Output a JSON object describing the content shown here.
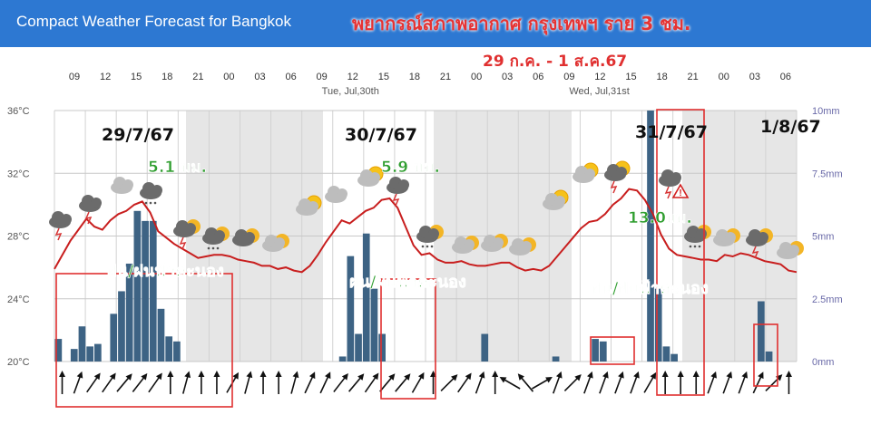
{
  "header": {
    "app_title": "Compact Weather Forecast for Bangkok",
    "thai_title": "พยากรณ์สภาพอากาศ กรุงเทพฯ ราย 3 ชม.",
    "date_range": "29 ก.ค. - 1 ส.ค.67"
  },
  "colors": {
    "banner": "#2d78d2",
    "temperature_line": "#c81e1e",
    "precip_bar": "#3d6384",
    "night_shade": "#e6e6e6",
    "annotation_red": "#e03030",
    "annotation_green": "#2f9e2f"
  },
  "chart_data": {
    "type": "line+bar",
    "x_hours": [
      "09",
      "12",
      "15",
      "18",
      "21",
      "00",
      "03",
      "06",
      "09",
      "12",
      "15",
      "18",
      "21",
      "00",
      "03",
      "06",
      "09",
      "12",
      "15",
      "18",
      "21",
      "00",
      "03",
      "06"
    ],
    "day_labels": [
      {
        "text": "Tue, Jul,30th",
        "hour_index": 8
      },
      {
        "text": "Wed, Jul,31st",
        "hour_index": 16
      }
    ],
    "y_left": {
      "ticks": [
        "20°C",
        "24°C",
        "28°C",
        "32°C",
        "36°C"
      ],
      "range": [
        20,
        36
      ],
      "unit": "°C"
    },
    "y_right": {
      "ticks": [
        "0mm",
        "2.5mm",
        "5mm",
        "7.5mm",
        "10mm"
      ],
      "range": [
        0,
        10
      ],
      "unit": "mm"
    },
    "temperature_series": [
      25.9,
      26.8,
      27.7,
      28.4,
      29.1,
      28.6,
      28.4,
      29.0,
      29.4,
      29.6,
      30.0,
      30.2,
      29.5,
      28.3,
      27.9,
      27.5,
      27.2,
      26.9,
      26.6,
      26.7,
      26.8,
      26.8,
      26.7,
      26.5,
      26.4,
      26.3,
      26.1,
      26.1,
      25.9,
      26.0,
      25.8,
      25.7,
      26.1,
      26.8,
      27.6,
      28.3,
      29.0,
      28.8,
      29.2,
      29.6,
      29.8,
      30.3,
      30.4,
      29.8,
      28.6,
      27.4,
      26.8,
      26.9,
      26.5,
      26.3,
      26.3,
      26.4,
      26.2,
      26.1,
      26.1,
      26.2,
      26.3,
      26.3,
      26.0,
      25.8,
      25.9,
      25.8,
      26.1,
      26.7,
      27.3,
      27.9,
      28.5,
      28.9,
      29.0,
      29.4,
      30.0,
      30.4,
      31.0,
      30.9,
      30.3,
      29.4,
      28.1,
      27.2,
      26.8,
      26.7,
      26.6,
      26.5,
      26.5,
      26.4,
      26.8,
      26.7,
      26.9,
      26.8,
      26.6,
      26.4,
      26.3,
      26.2,
      25.8,
      25.7
    ],
    "precipitation_mm": [
      0.9,
      0.0,
      0.5,
      1.4,
      0.6,
      0.7,
      0.0,
      1.9,
      2.8,
      3.9,
      6.0,
      5.6,
      5.6,
      2.1,
      1.0,
      0.8,
      0.0,
      0.0,
      0.0,
      0.0,
      0.0,
      0.0,
      0.0,
      0.0,
      0.0,
      0.0,
      0.0,
      0.0,
      0.0,
      0.0,
      0.0,
      0.0,
      0.0,
      0.0,
      0.0,
      0.0,
      0.2,
      4.2,
      1.1,
      5.1,
      2.9,
      1.1,
      0.0,
      0.0,
      0.0,
      0.0,
      0.0,
      0.0,
      0.0,
      0.0,
      0.0,
      0.0,
      0.0,
      0.0,
      1.1,
      0.0,
      0.0,
      0.0,
      0.0,
      0.0,
      0.0,
      0.0,
      0.0,
      0.2,
      0.0,
      0.0,
      0.0,
      0.0,
      0.9,
      0.8,
      0.0,
      0.0,
      0.0,
      0.0,
      0.0,
      12.0,
      2.9,
      0.6,
      0.3,
      0.0,
      0.0,
      0.0,
      0.0,
      0.0,
      0.0,
      0.0,
      0.0,
      0.0,
      0.0,
      2.4,
      0.4,
      0.0,
      0.0,
      0.0
    ],
    "wind_direction_deg": [
      0,
      20,
      35,
      35,
      40,
      38,
      35,
      0,
      15,
      0,
      0,
      30,
      15,
      0,
      0,
      15,
      25,
      25,
      38,
      40,
      35,
      40,
      40,
      30,
      0,
      45,
      35,
      20,
      0,
      300,
      320,
      60,
      20,
      45,
      20,
      20,
      20,
      20,
      30,
      0,
      0,
      0,
      20,
      20,
      20,
      25,
      45,
      0
    ],
    "annotations": {
      "dates": [
        "29/7/67",
        "30/7/67",
        "31/7/67",
        "1/8/67"
      ],
      "rain_totals": [
        "5.1 มม.",
        "5.9 มม.",
        "13.0มม."
      ],
      "rain_labels": [
        "ฝน/ฝนฟ้าคะนอง",
        "ฝน/ฝนฟ้าคะนอง",
        "ฝน/ฝนฟ้าคะนอง"
      ]
    },
    "weather_icons": [
      "cloud-rain-thunder-icon",
      "cloud-rain-thunder-icon",
      "cloud-icon",
      "cloud-rain-icon",
      "cloud-rain-thunder-night-icon",
      "cloud-rain-night-icon",
      "cloud-night-icon",
      "moon-cloud-icon",
      "sun-cloud-icon",
      "cloud-icon",
      "sun-cloud-icon",
      "cloud-rain-thunder-icon",
      "cloud-rain-night-icon",
      "moon-cloud-icon",
      "moon-cloud-icon",
      "moon-cloud-icon",
      "sun-cloud-icon",
      "sun-cloud-icon",
      "sun-rain-thunder-icon",
      "cloud-rain-thunder-icon",
      "cloud-rain-night-icon",
      "moon-cloud-icon",
      "cloud-rain-thunder-night-icon",
      "moon-cloud-icon"
    ],
    "warning_icon": "warning-icon"
  }
}
